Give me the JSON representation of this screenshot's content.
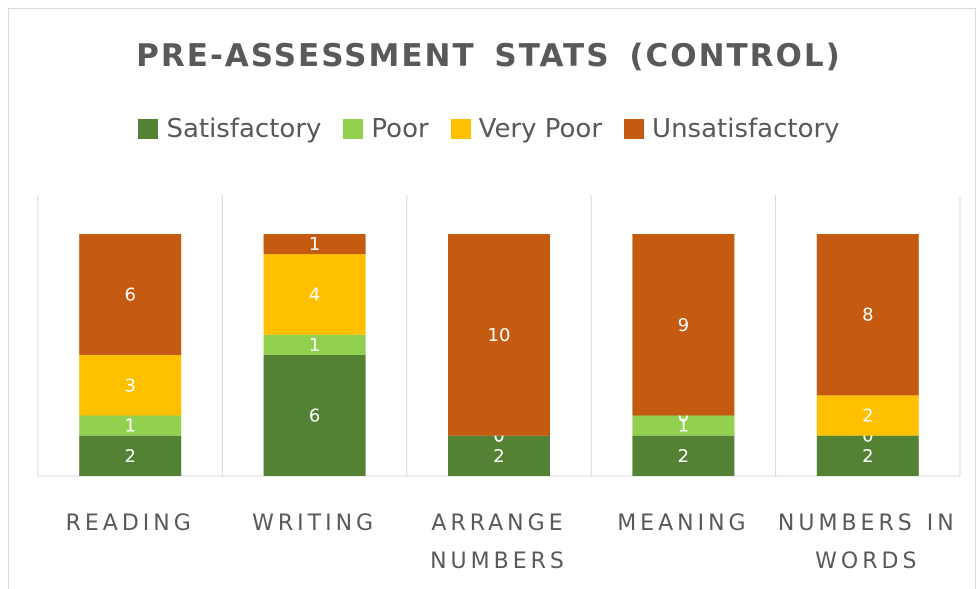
{
  "chart_data": {
    "type": "stacked_bar",
    "title": "PRE-ASSESSMENT STATS (CONTROL)",
    "categories": [
      "READING",
      "WRITING",
      "ARRANGE NUMBERS",
      "MEANING",
      "NUMBERS IN WORDS"
    ],
    "series": [
      {
        "name": "Satisfactory",
        "color": "#548235",
        "values": [
          2,
          6,
          2,
          2,
          2
        ]
      },
      {
        "name": "Poor",
        "color": "#92d050",
        "values": [
          1,
          1,
          0,
          1,
          0
        ]
      },
      {
        "name": "Very Poor",
        "color": "#ffc000",
        "values": [
          3,
          4,
          0,
          0,
          2
        ]
      },
      {
        "name": "Unsatisfactory",
        "color": "#c55a11",
        "values": [
          6,
          1,
          10,
          9,
          8
        ]
      }
    ],
    "ylim": [
      0,
      12
    ],
    "legend": "top"
  }
}
